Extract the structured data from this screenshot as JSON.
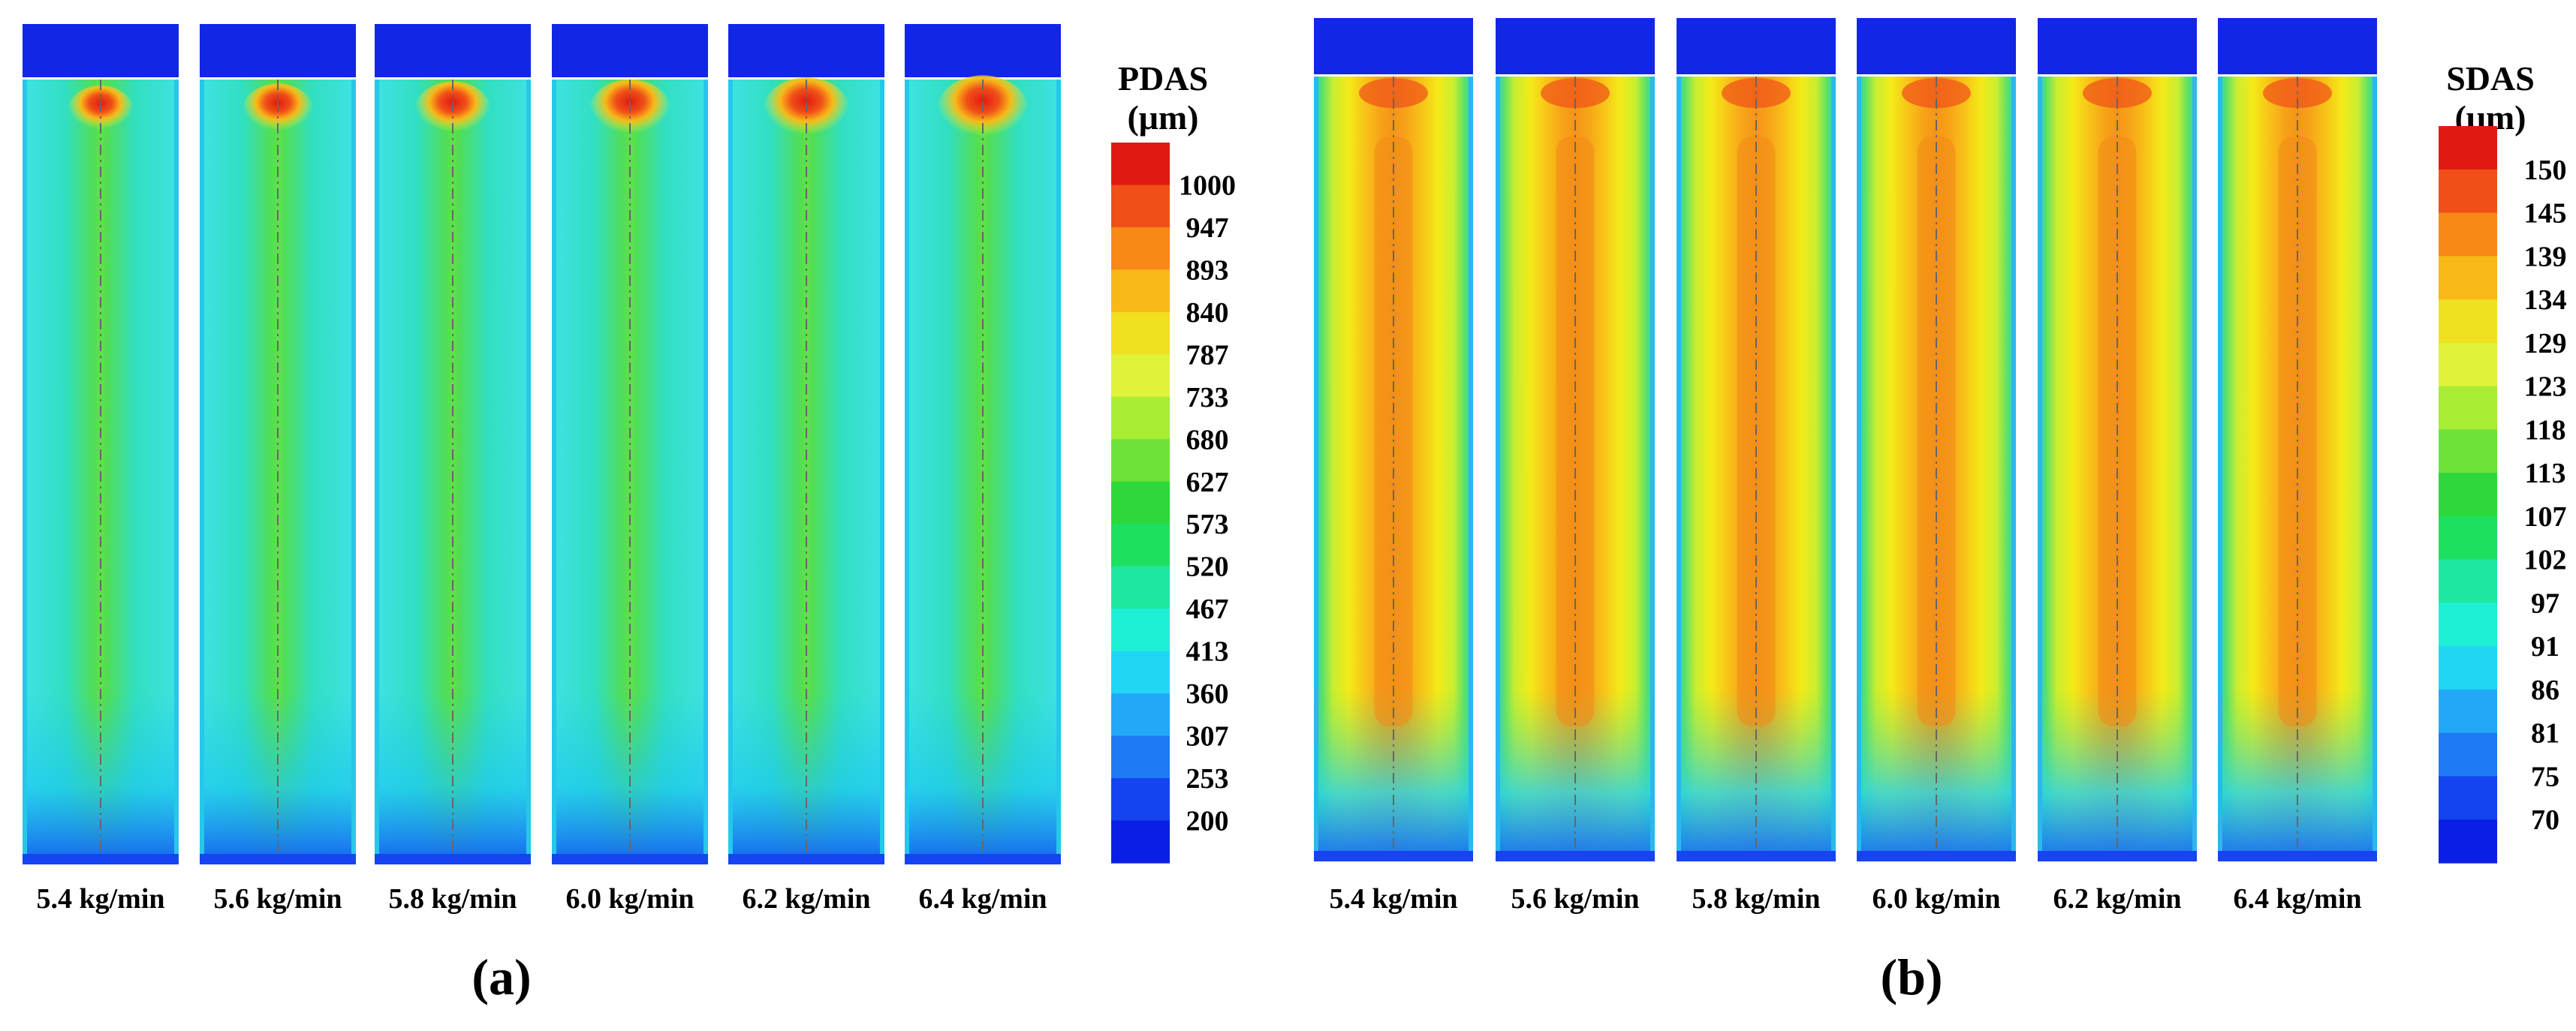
{
  "chart_data": [
    {
      "type": "heatmap",
      "panel_label": "(a)",
      "legend_title": [
        "PDAS",
        "(μm)"
      ],
      "legend_ticks": [
        "1000",
        "947",
        "893",
        "840",
        "787",
        "733",
        "680",
        "627",
        "573",
        "520",
        "467",
        "413",
        "360",
        "307",
        "253",
        "200"
      ],
      "value_range": [
        200,
        1000
      ],
      "categories": [
        "5.4 kg/min",
        "5.6 kg/min",
        "5.8 kg/min",
        "6.0 kg/min",
        "6.2 kg/min",
        "6.4 kg/min"
      ]
    },
    {
      "type": "heatmap",
      "panel_label": "(b)",
      "legend_title": [
        "SDAS",
        "(μm)"
      ],
      "legend_ticks": [
        "150",
        "145",
        "139",
        "134",
        "129",
        "123",
        "118",
        "113",
        "107",
        "102",
        "97",
        "91",
        "86",
        "81",
        "75",
        "70"
      ],
      "value_range": [
        70,
        150
      ],
      "categories": [
        "5.4 kg/min",
        "5.6 kg/min",
        "5.8 kg/min",
        "6.0 kg/min",
        "6.2 kg/min",
        "6.4 kg/min"
      ]
    }
  ],
  "colors": {
    "scale": [
      "#0a1ee6",
      "#1444f0",
      "#1e7af5",
      "#23a8f7",
      "#1fd7f5",
      "#1ef0d6",
      "#1ee8a0",
      "#1ee060",
      "#2ed83a",
      "#6ee23a",
      "#a8ec34",
      "#e0f23a",
      "#f0e020",
      "#f8b818",
      "#f88818",
      "#f05018",
      "#e01a12"
    ],
    "mold_cap": "#1226e6"
  }
}
